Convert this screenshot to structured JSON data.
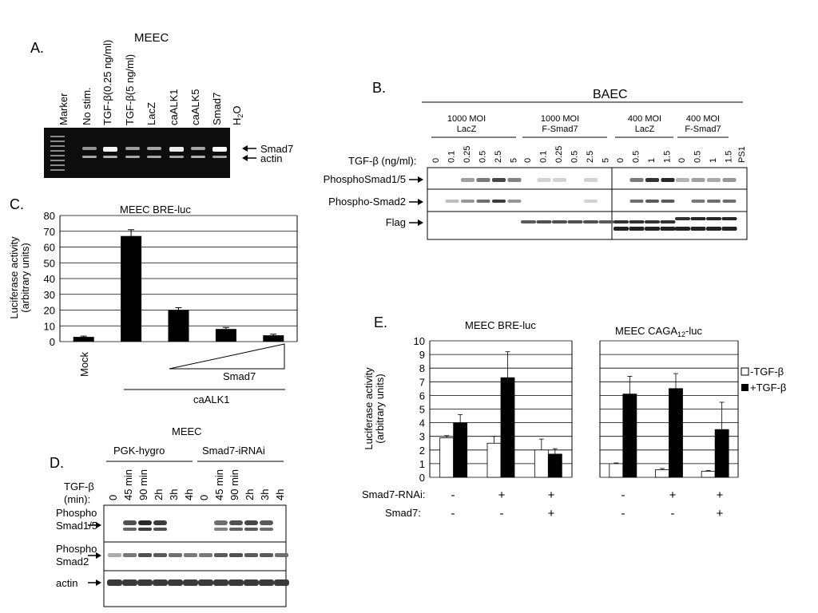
{
  "panel_a": {
    "letter": "A.",
    "title": "MEEC",
    "lanes": [
      "Marker",
      "No stim.",
      "TGF-β(0.25 ng/ml)",
      "TGF-β(5 ng/ml)",
      "LacZ",
      "caALK1",
      "caALK5",
      "Smad7",
      "H2O"
    ],
    "band_smad7": "Smad7",
    "band_actin": "actin"
  },
  "panel_b": {
    "letter": "B.",
    "title": "BAEC",
    "groups": [
      {
        "line1": "1000 MOI",
        "line2": "LacZ"
      },
      {
        "line1": "1000 MOI",
        "line2": "F-Smad7"
      },
      {
        "line1": "400 MOI",
        "line2": "LacZ"
      },
      {
        "line1": "400 MOI",
        "line2": "F-Smad7"
      }
    ],
    "tgf_label": "TGF-β (ng/ml):",
    "doses": [
      "0",
      "0.1",
      "0.25",
      "0.5",
      "2.5",
      "5",
      "0",
      "0.1",
      "0.25",
      "0.5",
      "2.5",
      "5",
      "0",
      "0.5",
      "1",
      "1.5",
      "0",
      "0.5",
      "1",
      "1.5",
      "PS1"
    ],
    "rows": [
      "PhosphoSmad1/5",
      "Phospho-Smad2",
      "Flag"
    ]
  },
  "panel_c": {
    "letter": "C.",
    "title": "MEEC  BRE-luc",
    "ylabel_line1": "Luciferase activity",
    "ylabel_line2": "(arbitrary units)",
    "mock_label": "Mock",
    "smad7_label": "Smad7",
    "caalk1_label": "caALK1"
  },
  "panel_d": {
    "letter": "D.",
    "title": "MEEC",
    "group_left": "PGK-hygro",
    "group_right": "Smad7-iRNAi",
    "tgf_line1": "TGF-β",
    "tgf_line2": "(min):",
    "times": [
      "0",
      "45 min",
      "90 min",
      "2h",
      "3h",
      "4h",
      "0",
      "45 min",
      "90 min",
      "2h",
      "3h",
      "4h"
    ],
    "rows": [
      {
        "line1": "Phospho",
        "line2": "Smad1/5"
      },
      {
        "line1": "Phospho",
        "line2": "Smad2"
      },
      {
        "line1": "actin",
        "line2": ""
      }
    ]
  },
  "panel_e": {
    "letter": "E.",
    "title_left": "MEEC BRE-luc",
    "title_right_main": "MEEC CAGA",
    "title_right_sub": "12",
    "title_right_tail": "-luc",
    "ylabel_line1": "Luciferase activity",
    "ylabel_line2": "(arbitrary units)",
    "legend_minus": "-TGF-β",
    "legend_plus": "+TGF-β",
    "row1_label": "Smad7-RNAi:",
    "row2_label": "Smad7:",
    "row1_signs": [
      "-",
      "+",
      "+",
      "-",
      "+",
      "+"
    ],
    "row2_signs": [
      "-",
      "-",
      "+",
      "-",
      "-",
      "+"
    ]
  },
  "chart_data": [
    {
      "type": "bar",
      "panel": "C",
      "title": "MEEC  BRE-luc",
      "ylabel": "Luciferase activity (arbitrary units)",
      "categories": [
        "Mock",
        "caALK1",
        "caALK1 + Smad7 (low)",
        "caALK1 + Smad7 (mid)",
        "caALK1 + Smad7 (high)"
      ],
      "values": [
        3,
        67,
        20,
        8,
        4
      ],
      "errors": [
        0.5,
        4,
        1.5,
        1,
        0.7
      ],
      "ylim": [
        0,
        80
      ],
      "yticks": [
        0,
        10,
        20,
        30,
        40,
        50,
        60,
        70,
        80
      ],
      "grid": true,
      "bar_color": "#000000"
    },
    {
      "type": "bar",
      "panel": "E-left",
      "title": "MEEC BRE-luc",
      "ylabel": "Luciferase activity (arbitrary units)",
      "categories": [
        "- / -",
        "+ / -",
        "+ / +"
      ],
      "series": [
        {
          "name": "-TGF-β",
          "values": [
            2.9,
            2.5,
            2.0
          ],
          "errors": [
            0.15,
            0.5,
            0.8
          ],
          "color": "#ffffff"
        },
        {
          "name": "+TGF-β",
          "values": [
            4.0,
            7.3,
            1.7
          ],
          "errors": [
            0.6,
            1.9,
            0.4
          ],
          "color": "#000000"
        }
      ],
      "ylim": [
        0,
        10
      ],
      "yticks": [
        0,
        1,
        2,
        3,
        4,
        5,
        6,
        7,
        8,
        9,
        10
      ],
      "grid": true
    },
    {
      "type": "bar",
      "panel": "E-right",
      "title": "MEEC CAGA12-luc",
      "categories": [
        "- / -",
        "+ / -",
        "+ / +"
      ],
      "series": [
        {
          "name": "-TGF-β",
          "values": [
            1.0,
            0.55,
            0.45
          ],
          "errors": [
            0.05,
            0.1,
            0.05
          ],
          "color": "#ffffff"
        },
        {
          "name": "+TGF-β",
          "values": [
            6.1,
            6.5,
            3.5
          ],
          "errors": [
            1.3,
            1.1,
            2.0
          ],
          "color": "#000000"
        }
      ],
      "ylim": [
        0,
        10
      ],
      "grid": true,
      "legend": "right"
    }
  ]
}
